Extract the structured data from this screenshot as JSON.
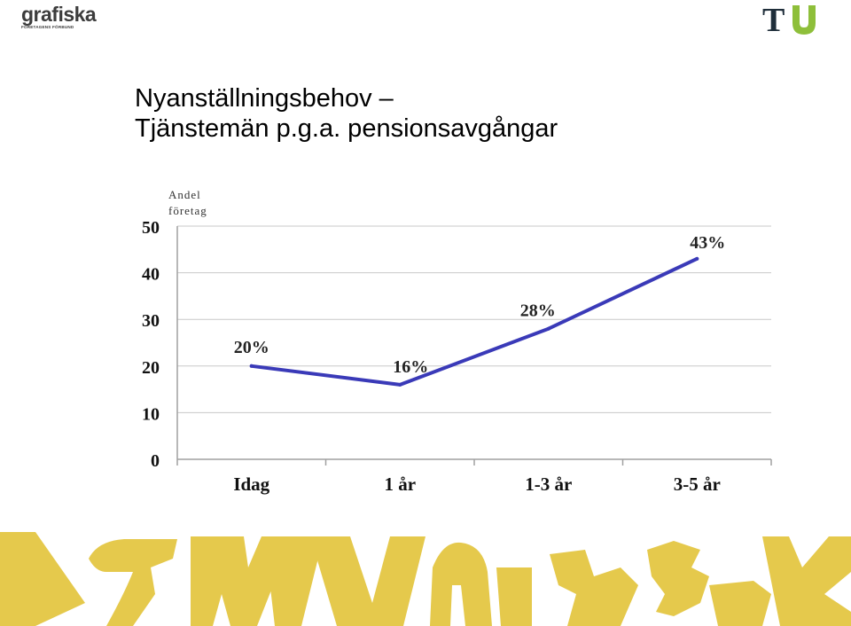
{
  "logos": {
    "left_name": "grafiska",
    "left_tagline": "FÖRETAGENS FÖRBUND",
    "right_name": "TU",
    "right_t_color": "#1f2e3a",
    "right_u_color": "#8ebf3a"
  },
  "title": {
    "line1": "Nyanställningsbehov –",
    "line2": "Tjänstemän p.g.a. pensionsavgångar"
  },
  "chart_data": {
    "type": "line",
    "ylabel_line1": "Andel",
    "ylabel_line2": "företag",
    "categories": [
      "Idag",
      "1 år",
      "1-3 år",
      "3-5 år"
    ],
    "values": [
      20,
      16,
      28,
      43
    ],
    "data_labels": [
      "20%",
      "16%",
      "28%",
      "43%"
    ],
    "yticks": [
      0,
      10,
      20,
      30,
      40,
      50
    ],
    "ylim": [
      0,
      50
    ],
    "grid": true,
    "line_color": "#3a3ab8"
  },
  "decor": {
    "color": "#e5c94c"
  }
}
